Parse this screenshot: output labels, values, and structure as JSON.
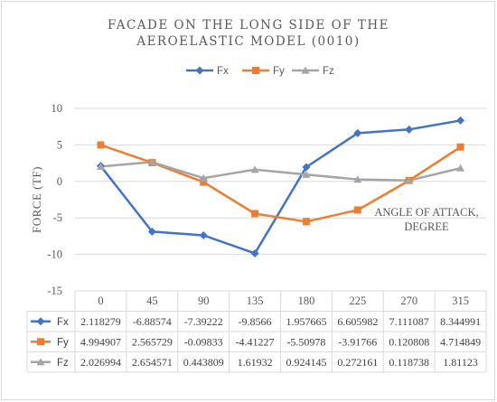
{
  "chart_data": {
    "type": "line",
    "title": [
      "FACADE ON THE LONG SIDE OF THE",
      "AEROELASTIC MODEL (0010)"
    ],
    "ylabel": "FORCE (TF)",
    "annotation": [
      "ANGLE OF ATTACK,",
      "DEGREE"
    ],
    "categories": [
      "0",
      "45",
      "90",
      "135",
      "180",
      "225",
      "270",
      "315"
    ],
    "ylim": [
      -15,
      10
    ],
    "yticks": [
      "10",
      "5",
      "0",
      "-5",
      "-10",
      "-15"
    ],
    "grid": true,
    "legend_position": "top",
    "series": [
      {
        "name": "Fx",
        "color": "#4472c4",
        "marker": "diamond",
        "values": [
          2.118279,
          -6.88574,
          -7.39222,
          -9.8566,
          1.957665,
          6.605982,
          7.111087,
          8.344991
        ],
        "labels": [
          "2.118279",
          "-6.88574",
          "-7.39222",
          "-9.8566",
          "1.957665",
          "6.605982",
          "7.111087",
          "8.344991"
        ]
      },
      {
        "name": "Fy",
        "color": "#ed7d31",
        "marker": "square",
        "values": [
          4.994907,
          2.565729,
          -0.09833,
          -4.41227,
          -5.50978,
          -3.91766,
          0.120808,
          4.714849
        ],
        "labels": [
          "4.994907",
          "2.565729",
          "-0.09833",
          "-4.41227",
          "-5.50978",
          "-3.91766",
          "0.120808",
          "4.714849"
        ]
      },
      {
        "name": "Fz",
        "color": "#a5a5a5",
        "marker": "triangle",
        "values": [
          2.026994,
          2.654571,
          0.443809,
          1.61932,
          0.924145,
          0.272161,
          0.118738,
          1.81123
        ],
        "labels": [
          "2.026994",
          "2.654571",
          "0.443809",
          "1.61932",
          "0.924145",
          "0.272161",
          "0.118738",
          "1.81123"
        ]
      }
    ]
  }
}
